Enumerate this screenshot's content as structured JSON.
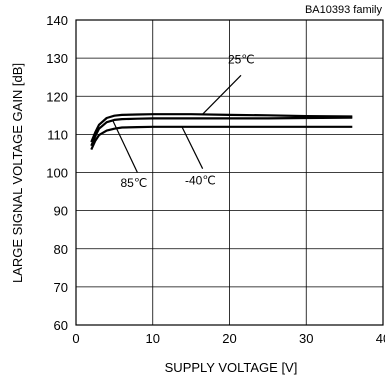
{
  "chart_data": {
    "type": "line",
    "title": "",
    "family_label": "BA10393 family",
    "xlabel": "SUPPLY VOLTAGE [V]",
    "ylabel": "LARGE SIGNAL VOLTAGE GAIN [dB]",
    "xlim": [
      0,
      40
    ],
    "ylim": [
      60,
      140
    ],
    "x_ticks": [
      0,
      10,
      20,
      30,
      40
    ],
    "y_ticks": [
      60,
      70,
      80,
      90,
      100,
      110,
      120,
      130,
      140
    ],
    "grid": true,
    "series": [
      {
        "name": "25℃",
        "points": [
          [
            2,
            108
          ],
          [
            2.5,
            110.5
          ],
          [
            3,
            112.5
          ],
          [
            4,
            114.3
          ],
          [
            5,
            114.9
          ],
          [
            6,
            115.1
          ],
          [
            8,
            115.2
          ],
          [
            10,
            115.3
          ],
          [
            15,
            115.3
          ],
          [
            20,
            115.1
          ],
          [
            25,
            115
          ],
          [
            30,
            114.8
          ],
          [
            36,
            114.7
          ]
        ]
      },
      {
        "name": "85℃",
        "points": [
          [
            2,
            107
          ],
          [
            2.5,
            109.5
          ],
          [
            3,
            111.5
          ],
          [
            4,
            113.2
          ],
          [
            5,
            113.8
          ],
          [
            6,
            114
          ],
          [
            8,
            114.1
          ],
          [
            10,
            114.2
          ],
          [
            15,
            114.2
          ],
          [
            20,
            114.2
          ],
          [
            25,
            114.2
          ],
          [
            30,
            114.3
          ],
          [
            36,
            114.4
          ]
        ]
      },
      {
        "name": "-40℃",
        "points": [
          [
            2,
            106
          ],
          [
            2.5,
            108.3
          ],
          [
            3,
            109.8
          ],
          [
            4,
            111
          ],
          [
            5,
            111.5
          ],
          [
            6,
            111.8
          ],
          [
            8,
            111.9
          ],
          [
            10,
            112
          ],
          [
            15,
            112
          ],
          [
            20,
            112
          ],
          [
            25,
            112
          ],
          [
            30,
            112
          ],
          [
            36,
            112
          ]
        ]
      }
    ],
    "annotations": [
      {
        "label": "25℃",
        "series": "25℃"
      },
      {
        "label": "85℃",
        "series": "85℃"
      },
      {
        "label": "-40℃",
        "series": "-40℃"
      }
    ]
  }
}
